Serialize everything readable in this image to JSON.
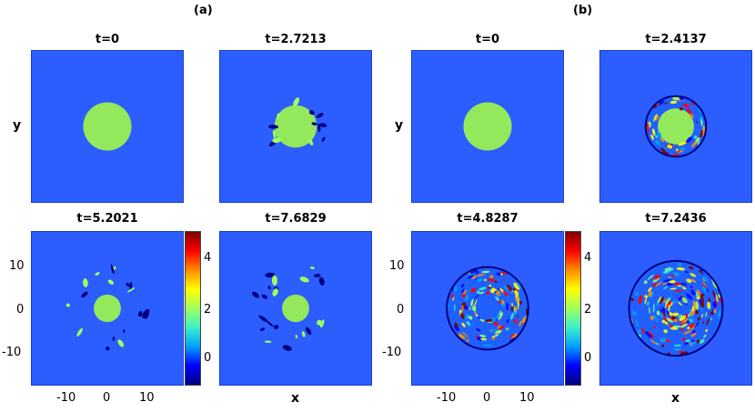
{
  "figure": {
    "group_labels": [
      "(a)",
      "(b)"
    ],
    "panels": [
      {
        "title": "t=0",
        "group": "a",
        "stage": 0
      },
      {
        "title": "t=2.7213",
        "group": "a",
        "stage": 1
      },
      {
        "title": "t=5.2021",
        "group": "a",
        "stage": 2
      },
      {
        "title": "t=7.6829",
        "group": "a",
        "stage": 3
      },
      {
        "title": "t=0",
        "group": "b",
        "stage": 0
      },
      {
        "title": "t=2.4137",
        "group": "b",
        "stage": 1
      },
      {
        "title": "t=4.8287",
        "group": "b",
        "stage": 2
      },
      {
        "title": "t=7.2436",
        "group": "b",
        "stage": 3
      }
    ],
    "x_label": "x",
    "y_label": "y",
    "x_ticks": [
      "-10",
      "0",
      "10"
    ],
    "y_ticks": [
      "10",
      "0",
      "-10"
    ],
    "colorbar_ticks": [
      "4",
      "2",
      "0"
    ],
    "colors": {
      "background_field": "#2b5dff",
      "disk": "#93e85c",
      "colormap": [
        "#00007f",
        "#0000ff",
        "#00a0ff",
        "#3cf0c8",
        "#a0ff5f",
        "#ffff00",
        "#ff8c00",
        "#ff0000",
        "#7f0000"
      ]
    }
  }
}
